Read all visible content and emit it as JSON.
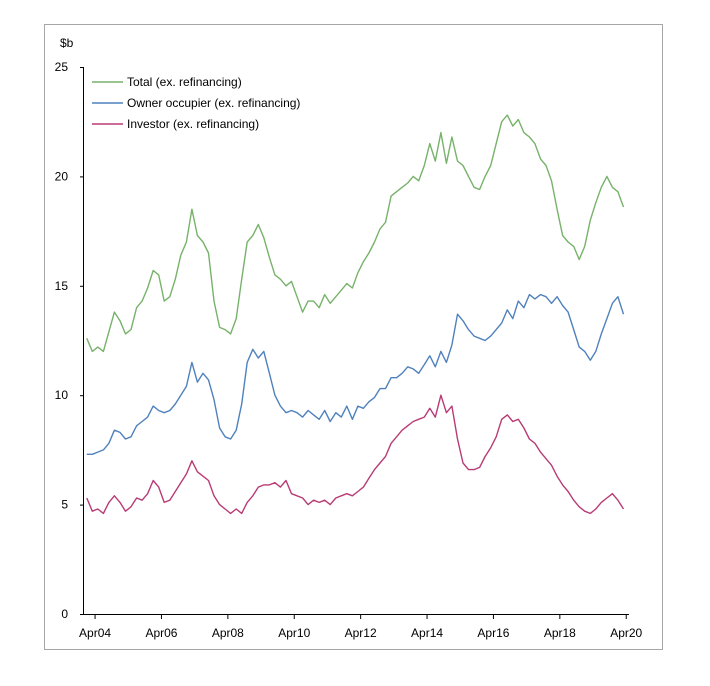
{
  "chart_data": {
    "type": "line",
    "ylabel": "$b",
    "ylim": [
      0,
      25
    ],
    "yticks": [
      0,
      5,
      10,
      15,
      20,
      25
    ],
    "xlim": [
      "2003-12",
      "2020-05"
    ],
    "xticks": [
      "Apr04",
      "Apr06",
      "Apr08",
      "Apr10",
      "Apr12",
      "Apr14",
      "Apr16",
      "Apr18",
      "Apr20"
    ],
    "legend_position": "top-left",
    "grid": false,
    "series": [
      {
        "name": "Total (ex. refinancing)",
        "color": "#77B26A",
        "points": [
          [
            "2004-01",
            12.6
          ],
          [
            "2004-03",
            12.0
          ],
          [
            "2004-05",
            12.2
          ],
          [
            "2004-07",
            12.0
          ],
          [
            "2004-09",
            12.9
          ],
          [
            "2004-11",
            13.8
          ],
          [
            "2005-01",
            13.4
          ],
          [
            "2005-03",
            12.8
          ],
          [
            "2005-05",
            13.0
          ],
          [
            "2005-07",
            14.0
          ],
          [
            "2005-09",
            14.3
          ],
          [
            "2005-11",
            14.9
          ],
          [
            "2006-01",
            15.7
          ],
          [
            "2006-03",
            15.5
          ],
          [
            "2006-05",
            14.3
          ],
          [
            "2006-07",
            14.5
          ],
          [
            "2006-09",
            15.3
          ],
          [
            "2006-11",
            16.4
          ],
          [
            "2007-01",
            17.0
          ],
          [
            "2007-03",
            18.5
          ],
          [
            "2007-05",
            17.3
          ],
          [
            "2007-07",
            17.0
          ],
          [
            "2007-09",
            16.5
          ],
          [
            "2007-11",
            14.3
          ],
          [
            "2008-01",
            13.1
          ],
          [
            "2008-03",
            13.0
          ],
          [
            "2008-05",
            12.8
          ],
          [
            "2008-07",
            13.5
          ],
          [
            "2008-09",
            15.3
          ],
          [
            "2008-11",
            17.0
          ],
          [
            "2009-01",
            17.3
          ],
          [
            "2009-03",
            17.8
          ],
          [
            "2009-05",
            17.2
          ],
          [
            "2009-07",
            16.3
          ],
          [
            "2009-09",
            15.5
          ],
          [
            "2009-11",
            15.3
          ],
          [
            "2010-01",
            15.0
          ],
          [
            "2010-03",
            15.2
          ],
          [
            "2010-05",
            14.5
          ],
          [
            "2010-07",
            13.8
          ],
          [
            "2010-09",
            14.3
          ],
          [
            "2010-11",
            14.3
          ],
          [
            "2011-01",
            14.0
          ],
          [
            "2011-03",
            14.6
          ],
          [
            "2011-05",
            14.2
          ],
          [
            "2011-07",
            14.5
          ],
          [
            "2011-09",
            14.8
          ],
          [
            "2011-11",
            15.1
          ],
          [
            "2012-01",
            14.9
          ],
          [
            "2012-03",
            15.6
          ],
          [
            "2012-05",
            16.1
          ],
          [
            "2012-07",
            16.5
          ],
          [
            "2012-09",
            17.0
          ],
          [
            "2012-11",
            17.6
          ],
          [
            "2013-01",
            17.9
          ],
          [
            "2013-03",
            19.1
          ],
          [
            "2013-05",
            19.3
          ],
          [
            "2013-07",
            19.5
          ],
          [
            "2013-09",
            19.7
          ],
          [
            "2013-11",
            20.0
          ],
          [
            "2014-01",
            19.8
          ],
          [
            "2014-03",
            20.5
          ],
          [
            "2014-05",
            21.5
          ],
          [
            "2014-07",
            20.7
          ],
          [
            "2014-09",
            22.0
          ],
          [
            "2014-11",
            20.6
          ],
          [
            "2015-01",
            21.8
          ],
          [
            "2015-03",
            20.7
          ],
          [
            "2015-05",
            20.5
          ],
          [
            "2015-07",
            20.0
          ],
          [
            "2015-09",
            19.5
          ],
          [
            "2015-11",
            19.4
          ],
          [
            "2016-01",
            20.0
          ],
          [
            "2016-03",
            20.5
          ],
          [
            "2016-05",
            21.5
          ],
          [
            "2016-07",
            22.5
          ],
          [
            "2016-09",
            22.8
          ],
          [
            "2016-11",
            22.3
          ],
          [
            "2017-01",
            22.6
          ],
          [
            "2017-03",
            22.0
          ],
          [
            "2017-05",
            21.8
          ],
          [
            "2017-07",
            21.5
          ],
          [
            "2017-09",
            20.8
          ],
          [
            "2017-11",
            20.5
          ],
          [
            "2018-01",
            19.8
          ],
          [
            "2018-03",
            18.5
          ],
          [
            "2018-05",
            17.3
          ],
          [
            "2018-07",
            17.0
          ],
          [
            "2018-09",
            16.8
          ],
          [
            "2018-11",
            16.2
          ],
          [
            "2019-01",
            16.8
          ],
          [
            "2019-03",
            18.0
          ],
          [
            "2019-05",
            18.8
          ],
          [
            "2019-07",
            19.5
          ],
          [
            "2019-09",
            20.0
          ],
          [
            "2019-11",
            19.5
          ],
          [
            "2020-01",
            19.3
          ],
          [
            "2020-03",
            18.6
          ]
        ]
      },
      {
        "name": "Owner occupier (ex. refinancing)",
        "color": "#4F81BD",
        "points": [
          [
            "2004-01",
            7.3
          ],
          [
            "2004-03",
            7.3
          ],
          [
            "2004-05",
            7.4
          ],
          [
            "2004-07",
            7.5
          ],
          [
            "2004-09",
            7.8
          ],
          [
            "2004-11",
            8.4
          ],
          [
            "2005-01",
            8.3
          ],
          [
            "2005-03",
            8.0
          ],
          [
            "2005-05",
            8.1
          ],
          [
            "2005-07",
            8.6
          ],
          [
            "2005-09",
            8.8
          ],
          [
            "2005-11",
            9.0
          ],
          [
            "2006-01",
            9.5
          ],
          [
            "2006-03",
            9.3
          ],
          [
            "2006-05",
            9.2
          ],
          [
            "2006-07",
            9.3
          ],
          [
            "2006-09",
            9.6
          ],
          [
            "2006-11",
            10.0
          ],
          [
            "2007-01",
            10.4
          ],
          [
            "2007-03",
            11.5
          ],
          [
            "2007-05",
            10.6
          ],
          [
            "2007-07",
            11.0
          ],
          [
            "2007-09",
            10.7
          ],
          [
            "2007-11",
            9.8
          ],
          [
            "2008-01",
            8.5
          ],
          [
            "2008-03",
            8.1
          ],
          [
            "2008-05",
            8.0
          ],
          [
            "2008-07",
            8.4
          ],
          [
            "2008-09",
            9.6
          ],
          [
            "2008-11",
            11.5
          ],
          [
            "2009-01",
            12.1
          ],
          [
            "2009-03",
            11.7
          ],
          [
            "2009-05",
            12.0
          ],
          [
            "2009-07",
            11.0
          ],
          [
            "2009-09",
            10.0
          ],
          [
            "2009-11",
            9.5
          ],
          [
            "2010-01",
            9.2
          ],
          [
            "2010-03",
            9.3
          ],
          [
            "2010-05",
            9.2
          ],
          [
            "2010-07",
            9.0
          ],
          [
            "2010-09",
            9.3
          ],
          [
            "2010-11",
            9.1
          ],
          [
            "2011-01",
            8.9
          ],
          [
            "2011-03",
            9.3
          ],
          [
            "2011-05",
            8.8
          ],
          [
            "2011-07",
            9.2
          ],
          [
            "2011-09",
            9.0
          ],
          [
            "2011-11",
            9.5
          ],
          [
            "2012-01",
            8.9
          ],
          [
            "2012-03",
            9.5
          ],
          [
            "2012-05",
            9.4
          ],
          [
            "2012-07",
            9.7
          ],
          [
            "2012-09",
            9.9
          ],
          [
            "2012-11",
            10.3
          ],
          [
            "2013-01",
            10.3
          ],
          [
            "2013-03",
            10.8
          ],
          [
            "2013-05",
            10.8
          ],
          [
            "2013-07",
            11.0
          ],
          [
            "2013-09",
            11.3
          ],
          [
            "2013-11",
            11.2
          ],
          [
            "2014-01",
            11.0
          ],
          [
            "2014-03",
            11.4
          ],
          [
            "2014-05",
            11.8
          ],
          [
            "2014-07",
            11.3
          ],
          [
            "2014-09",
            12.0
          ],
          [
            "2014-11",
            11.5
          ],
          [
            "2015-01",
            12.3
          ],
          [
            "2015-03",
            13.7
          ],
          [
            "2015-05",
            13.4
          ],
          [
            "2015-07",
            13.0
          ],
          [
            "2015-09",
            12.7
          ],
          [
            "2015-11",
            12.6
          ],
          [
            "2016-01",
            12.5
          ],
          [
            "2016-03",
            12.7
          ],
          [
            "2016-05",
            13.0
          ],
          [
            "2016-07",
            13.3
          ],
          [
            "2016-09",
            13.9
          ],
          [
            "2016-11",
            13.5
          ],
          [
            "2017-01",
            14.3
          ],
          [
            "2017-03",
            14.0
          ],
          [
            "2017-05",
            14.6
          ],
          [
            "2017-07",
            14.4
          ],
          [
            "2017-09",
            14.6
          ],
          [
            "2017-11",
            14.5
          ],
          [
            "2018-01",
            14.2
          ],
          [
            "2018-03",
            14.5
          ],
          [
            "2018-05",
            14.1
          ],
          [
            "2018-07",
            13.8
          ],
          [
            "2018-09",
            13.0
          ],
          [
            "2018-11",
            12.2
          ],
          [
            "2019-01",
            12.0
          ],
          [
            "2019-03",
            11.6
          ],
          [
            "2019-05",
            12.0
          ],
          [
            "2019-07",
            12.8
          ],
          [
            "2019-09",
            13.5
          ],
          [
            "2019-11",
            14.2
          ],
          [
            "2020-01",
            14.5
          ],
          [
            "2020-03",
            13.7
          ]
        ]
      },
      {
        "name": "Investor (ex. refinancing)",
        "color": "#B83B75",
        "points": [
          [
            "2004-01",
            5.3
          ],
          [
            "2004-03",
            4.7
          ],
          [
            "2004-05",
            4.8
          ],
          [
            "2004-07",
            4.6
          ],
          [
            "2004-09",
            5.1
          ],
          [
            "2004-11",
            5.4
          ],
          [
            "2005-01",
            5.1
          ],
          [
            "2005-03",
            4.7
          ],
          [
            "2005-05",
            4.9
          ],
          [
            "2005-07",
            5.3
          ],
          [
            "2005-09",
            5.2
          ],
          [
            "2005-11",
            5.5
          ],
          [
            "2006-01",
            6.1
          ],
          [
            "2006-03",
            5.8
          ],
          [
            "2006-05",
            5.1
          ],
          [
            "2006-07",
            5.2
          ],
          [
            "2006-09",
            5.6
          ],
          [
            "2006-11",
            6.0
          ],
          [
            "2007-01",
            6.4
          ],
          [
            "2007-03",
            7.0
          ],
          [
            "2007-05",
            6.5
          ],
          [
            "2007-07",
            6.3
          ],
          [
            "2007-09",
            6.1
          ],
          [
            "2007-11",
            5.4
          ],
          [
            "2008-01",
            5.0
          ],
          [
            "2008-03",
            4.8
          ],
          [
            "2008-05",
            4.6
          ],
          [
            "2008-07",
            4.8
          ],
          [
            "2008-09",
            4.6
          ],
          [
            "2008-11",
            5.1
          ],
          [
            "2009-01",
            5.4
          ],
          [
            "2009-03",
            5.8
          ],
          [
            "2009-05",
            5.9
          ],
          [
            "2009-07",
            5.9
          ],
          [
            "2009-09",
            6.0
          ],
          [
            "2009-11",
            5.8
          ],
          [
            "2010-01",
            6.1
          ],
          [
            "2010-03",
            5.5
          ],
          [
            "2010-05",
            5.4
          ],
          [
            "2010-07",
            5.3
          ],
          [
            "2010-09",
            5.0
          ],
          [
            "2010-11",
            5.2
          ],
          [
            "2011-01",
            5.1
          ],
          [
            "2011-03",
            5.2
          ],
          [
            "2011-05",
            5.0
          ],
          [
            "2011-07",
            5.3
          ],
          [
            "2011-09",
            5.4
          ],
          [
            "2011-11",
            5.5
          ],
          [
            "2012-01",
            5.4
          ],
          [
            "2012-03",
            5.6
          ],
          [
            "2012-05",
            5.8
          ],
          [
            "2012-07",
            6.2
          ],
          [
            "2012-09",
            6.6
          ],
          [
            "2012-11",
            6.9
          ],
          [
            "2013-01",
            7.2
          ],
          [
            "2013-03",
            7.8
          ],
          [
            "2013-05",
            8.1
          ],
          [
            "2013-07",
            8.4
          ],
          [
            "2013-09",
            8.6
          ],
          [
            "2013-11",
            8.8
          ],
          [
            "2014-01",
            8.9
          ],
          [
            "2014-03",
            9.0
          ],
          [
            "2014-05",
            9.4
          ],
          [
            "2014-07",
            9.0
          ],
          [
            "2014-09",
            10.0
          ],
          [
            "2014-11",
            9.2
          ],
          [
            "2015-01",
            9.5
          ],
          [
            "2015-03",
            8.0
          ],
          [
            "2015-05",
            6.9
          ],
          [
            "2015-07",
            6.6
          ],
          [
            "2015-09",
            6.6
          ],
          [
            "2015-11",
            6.7
          ],
          [
            "2016-01",
            7.2
          ],
          [
            "2016-03",
            7.6
          ],
          [
            "2016-05",
            8.1
          ],
          [
            "2016-07",
            8.9
          ],
          [
            "2016-09",
            9.1
          ],
          [
            "2016-11",
            8.8
          ],
          [
            "2017-01",
            8.9
          ],
          [
            "2017-03",
            8.5
          ],
          [
            "2017-05",
            8.0
          ],
          [
            "2017-07",
            7.8
          ],
          [
            "2017-09",
            7.4
          ],
          [
            "2017-11",
            7.1
          ],
          [
            "2018-01",
            6.8
          ],
          [
            "2018-03",
            6.3
          ],
          [
            "2018-05",
            5.9
          ],
          [
            "2018-07",
            5.6
          ],
          [
            "2018-09",
            5.2
          ],
          [
            "2018-11",
            4.9
          ],
          [
            "2019-01",
            4.7
          ],
          [
            "2019-03",
            4.6
          ],
          [
            "2019-05",
            4.8
          ],
          [
            "2019-07",
            5.1
          ],
          [
            "2019-09",
            5.3
          ],
          [
            "2019-11",
            5.5
          ],
          [
            "2020-01",
            5.2
          ],
          [
            "2020-03",
            4.8
          ]
        ]
      }
    ]
  }
}
